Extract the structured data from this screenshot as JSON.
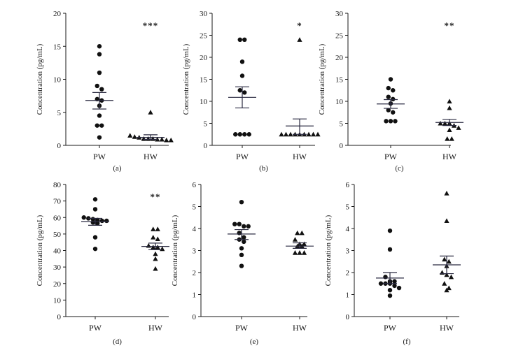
{
  "chart_data": [
    {
      "type": "scatter",
      "panel_label": "(a)",
      "ylabel": "Concentration (pg/mL)",
      "ylim": [
        0,
        20
      ],
      "yticks": [
        0,
        5,
        10,
        15,
        20
      ],
      "categories": [
        "PW",
        "HW"
      ],
      "significance": "***",
      "series": [
        {
          "category": "PW",
          "marker": "circle",
          "values": [
            15.0,
            13.8,
            11.0,
            9.0,
            8.5,
            7.0,
            6.8,
            6.0,
            4.5,
            3.0,
            3.0,
            1.2
          ],
          "mean": 6.8,
          "sem_low": 5.5,
          "sem_high": 8.0
        },
        {
          "category": "HW",
          "marker": "triangle",
          "values": [
            5.0,
            1.5,
            1.3,
            1.2,
            1.0,
            1.0,
            1.0,
            0.9,
            0.9,
            0.8,
            0.8
          ],
          "mean": 1.2,
          "sem_low": 0.9,
          "sem_high": 1.6
        }
      ]
    },
    {
      "type": "scatter",
      "panel_label": "(b)",
      "ylabel": "Concentration (pg/mL)",
      "ylim": [
        0,
        30
      ],
      "yticks": [
        0,
        5,
        10,
        15,
        20,
        25,
        30
      ],
      "categories": [
        "PW",
        "HW"
      ],
      "significance": "*",
      "series": [
        {
          "category": "PW",
          "marker": "circle",
          "values": [
            24.0,
            24.0,
            19.0,
            15.8,
            12.5,
            12.0,
            2.5,
            2.5,
            2.5,
            2.5
          ],
          "mean": 10.9,
          "sem_low": 8.5,
          "sem_high": 13.3
        },
        {
          "category": "HW",
          "marker": "triangle",
          "values": [
            24.0,
            2.5,
            2.5,
            2.5,
            2.5,
            2.5,
            2.5,
            2.5,
            2.5,
            2.5
          ],
          "mean": 4.4,
          "sem_low": 2.5,
          "sem_high": 6.0
        }
      ]
    },
    {
      "type": "scatter",
      "panel_label": "(c)",
      "ylabel": "Concentration (pg/mL)",
      "ylim": [
        0,
        30
      ],
      "yticks": [
        0,
        5,
        10,
        15,
        20,
        25,
        30
      ],
      "categories": [
        "PW",
        "HW"
      ],
      "significance": "**",
      "series": [
        {
          "category": "PW",
          "marker": "circle",
          "values": [
            15.0,
            13.0,
            12.5,
            11.0,
            10.5,
            9.5,
            8.0,
            7.5,
            5.5,
            5.5,
            5.5
          ],
          "mean": 9.4,
          "sem_low": 8.4,
          "sem_high": 10.4
        },
        {
          "category": "HW",
          "marker": "triangle",
          "values": [
            10.0,
            8.5,
            5.0,
            5.0,
            5.0,
            4.5,
            4.0,
            3.5,
            1.5,
            1.5
          ],
          "mean": 5.2,
          "sem_low": 4.5,
          "sem_high": 5.9
        }
      ]
    },
    {
      "type": "scatter",
      "panel_label": "(d)",
      "ylabel": "Concentration (pg/mL)",
      "ylim": [
        0,
        80
      ],
      "yticks": [
        0,
        10,
        20,
        30,
        40,
        50,
        60,
        70,
        80
      ],
      "categories": [
        "PW",
        "HW"
      ],
      "significance": "**",
      "series": [
        {
          "category": "PW",
          "marker": "circle",
          "values": [
            71.0,
            65.0,
            60.0,
            59.5,
            59.0,
            58.5,
            58.0,
            58.0,
            57.0,
            56.5,
            48.0,
            41.0
          ],
          "mean": 57.5,
          "sem_low": 55.3,
          "sem_high": 59.5
        },
        {
          "category": "HW",
          "marker": "triangle",
          "values": [
            53.0,
            53.0,
            48.0,
            47.0,
            43.0,
            42.0,
            42.0,
            41.0,
            38.0,
            35.0,
            29.0
          ],
          "mean": 42.5,
          "sem_low": 40.5,
          "sem_high": 44.5
        }
      ]
    },
    {
      "type": "scatter",
      "panel_label": "(e)",
      "ylabel": "Concentration (pg/mL)",
      "ylim": [
        0,
        6
      ],
      "yticks": [
        0,
        1,
        2,
        3,
        4,
        5,
        6
      ],
      "categories": [
        "PW",
        "HW"
      ],
      "significance": "",
      "series": [
        {
          "category": "PW",
          "marker": "circle",
          "values": [
            5.2,
            4.2,
            4.2,
            4.1,
            4.1,
            3.8,
            3.6,
            3.5,
            3.4,
            3.1,
            2.8,
            2.3
          ],
          "mean": 3.75,
          "sem_low": 3.5,
          "sem_high": 3.95
        },
        {
          "category": "HW",
          "marker": "triangle",
          "values": [
            3.8,
            3.8,
            3.5,
            3.3,
            3.3,
            3.2,
            3.2,
            2.9,
            2.9,
            2.9
          ],
          "mean": 3.2,
          "sem_low": 3.1,
          "sem_high": 3.35
        }
      ]
    },
    {
      "type": "scatter",
      "panel_label": "(f)",
      "ylabel": "Concentration (pg/mL)",
      "ylim": [
        0,
        6
      ],
      "yticks": [
        0,
        1,
        2,
        3,
        4,
        5,
        6
      ],
      "categories": [
        "PW",
        "HW"
      ],
      "significance": "",
      "series": [
        {
          "category": "PW",
          "marker": "circle",
          "values": [
            3.9,
            3.05,
            1.8,
            1.6,
            1.6,
            1.5,
            1.5,
            1.5,
            1.4,
            1.3,
            1.2,
            0.95
          ],
          "mean": 1.75,
          "sem_low": 1.5,
          "sem_high": 2.0
        },
        {
          "category": "HW",
          "marker": "triangle",
          "values": [
            5.6,
            4.35,
            2.6,
            2.5,
            2.3,
            2.0,
            1.9,
            1.8,
            1.5,
            1.3,
            1.2
          ],
          "mean": 2.35,
          "sem_low": 1.95,
          "sem_high": 2.75
        }
      ]
    }
  ]
}
